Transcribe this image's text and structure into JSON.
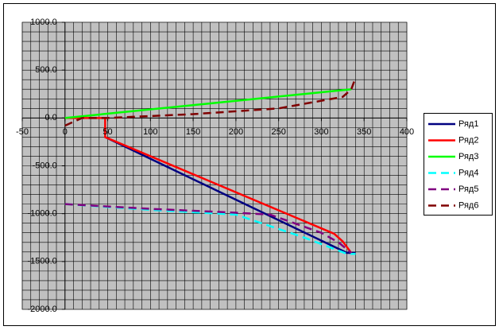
{
  "chart_data": {
    "type": "line",
    "xlim": [
      -50,
      400
    ],
    "xticks": [
      -50,
      0,
      50,
      100,
      150,
      200,
      250,
      300,
      350,
      400
    ],
    "ylim": [
      -2000,
      1000
    ],
    "yticks": [
      {
        "value": 1000,
        "label": "1000.0"
      },
      {
        "value": 500,
        "label": "500.0"
      },
      {
        "value": 0,
        "label": "0.0"
      },
      {
        "value": -500,
        "label": "-500.0"
      },
      {
        "value": -1000,
        "label": "-1000.0"
      },
      {
        "value": -1500,
        "label": "-1500.0"
      },
      {
        "value": -2000,
        "label": "-2000.0"
      }
    ],
    "grid": true,
    "minor_grid": {
      "x": 10,
      "y": 100
    },
    "legend": "right",
    "series": [
      {
        "name": "Ряд1",
        "color": "#000080",
        "dashed": false,
        "x": [
          47,
          330,
          340
        ],
        "values": [
          -200,
          -1410,
          -1410
        ]
      },
      {
        "name": "Ряд2",
        "color": "#ff0000",
        "dashed": false,
        "x": [
          0,
          47,
          47,
          315,
          325,
          335
        ],
        "values": [
          0,
          0,
          -200,
          -1210,
          -1290,
          -1410
        ]
      },
      {
        "name": "Ряд3",
        "color": "#00ff00",
        "dashed": false,
        "x": [
          0,
          335
        ],
        "values": [
          0,
          300
        ]
      },
      {
        "name": "Ряд4",
        "color": "#00ffff",
        "dashed": true,
        "x": [
          0,
          100,
          200,
          280,
          330,
          340
        ],
        "values": [
          -900,
          -960,
          -1010,
          -1250,
          -1420,
          -1420
        ]
      },
      {
        "name": "Ряд5",
        "color": "#800080",
        "dashed": true,
        "x": [
          0,
          100,
          200,
          240,
          300,
          320,
          335
        ],
        "values": [
          -900,
          -950,
          -990,
          -1010,
          -1200,
          -1300,
          -1410
        ]
      },
      {
        "name": "Ряд6",
        "color": "#800000",
        "dashed": true,
        "x": [
          0,
          20,
          50,
          150,
          250,
          325,
          335,
          340
        ],
        "values": [
          -80,
          0,
          0,
          40,
          100,
          220,
          300,
          420
        ]
      }
    ]
  }
}
